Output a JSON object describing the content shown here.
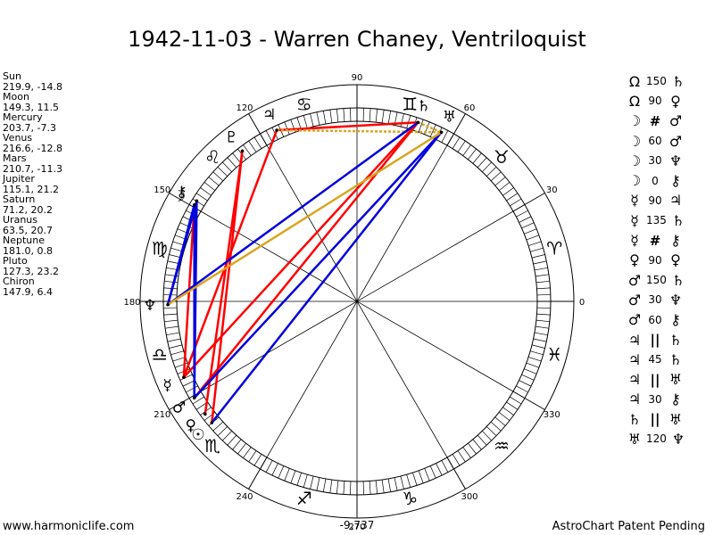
{
  "title": "1942-11-03 - Warren Chaney, Ventriloquist",
  "planets": [
    {
      "name": "Sun",
      "longitude": 219.9,
      "latitude": -14.8,
      "value_text": "219.9, -14.8",
      "glyph": "☉",
      "glyph_label": "Ω"
    },
    {
      "name": "Moon",
      "longitude": 149.3,
      "latitude": 11.5,
      "value_text": "149.3, 11.5",
      "glyph": "☽"
    },
    {
      "name": "Mercury",
      "longitude": 203.7,
      "latitude": -7.3,
      "value_text": "203.7, -7.3",
      "glyph": "☿"
    },
    {
      "name": "Venus",
      "longitude": 216.6,
      "latitude": -12.8,
      "value_text": "216.6, -12.8",
      "glyph": "♀"
    },
    {
      "name": "Mars",
      "longitude": 210.7,
      "latitude": -11.3,
      "value_text": "210.7, -11.3",
      "glyph": "♂"
    },
    {
      "name": "Jupiter",
      "longitude": 115.1,
      "latitude": 21.2,
      "value_text": "115.1, 21.2",
      "glyph": "♃"
    },
    {
      "name": "Saturn",
      "longitude": 71.2,
      "latitude": 20.2,
      "value_text": "71.2, 20.2",
      "glyph": "♄"
    },
    {
      "name": "Uranus",
      "longitude": 63.5,
      "latitude": 20.7,
      "value_text": "63.5, 20.7",
      "glyph": "♅"
    },
    {
      "name": "Neptune",
      "longitude": 181.0,
      "latitude": 0.8,
      "value_text": "181.0, 0.8",
      "glyph": "♆"
    },
    {
      "name": "Pluto",
      "longitude": 127.3,
      "latitude": 23.2,
      "value_text": "127.3, 23.2",
      "glyph": "♇"
    },
    {
      "name": "Chiron",
      "longitude": 147.9,
      "latitude": 6.4,
      "value_text": "147.9, 6.4",
      "glyph": "⚷"
    }
  ],
  "aspects": [
    {
      "p1": "Ω",
      "angle": "150",
      "p2": "♄"
    },
    {
      "p1": "Ω",
      "angle": "90",
      "p2": "♀"
    },
    {
      "p1": "☽",
      "angle": "#",
      "p2": "♂"
    },
    {
      "p1": "☽",
      "angle": "60",
      "p2": "♂"
    },
    {
      "p1": "☽",
      "angle": "30",
      "p2": "♆"
    },
    {
      "p1": "☽",
      "angle": "0",
      "p2": "⚷"
    },
    {
      "p1": "☿",
      "angle": "90",
      "p2": "♃"
    },
    {
      "p1": "☿",
      "angle": "135",
      "p2": "♄"
    },
    {
      "p1": "☿",
      "angle": "#",
      "p2": "⚷"
    },
    {
      "p1": "♀",
      "angle": "90",
      "p2": "♀"
    },
    {
      "p1": "♂",
      "angle": "150",
      "p2": "♄"
    },
    {
      "p1": "♂",
      "angle": "30",
      "p2": "♆"
    },
    {
      "p1": "♂",
      "angle": "60",
      "p2": "⚷"
    },
    {
      "p1": "♃",
      "angle": "||",
      "p2": "♄"
    },
    {
      "p1": "♃",
      "angle": "45",
      "p2": "♄"
    },
    {
      "p1": "♃",
      "angle": "||",
      "p2": "♅"
    },
    {
      "p1": "♃",
      "angle": "30",
      "p2": "⚷"
    },
    {
      "p1": "♄",
      "angle": "||",
      "p2": "♅"
    },
    {
      "p1": "♅",
      "angle": "120",
      "p2": "♆"
    }
  ],
  "wheel_degree_labels": [
    "0",
    "30",
    "60",
    "90",
    "120",
    "150",
    "180",
    "210",
    "240",
    "270",
    "300",
    "330"
  ],
  "zodiac_signs": [
    "♈",
    "♉",
    "♊",
    "♋",
    "♌",
    "♍",
    "♎",
    "♏",
    "♐",
    "♑",
    "♒",
    "♓"
  ],
  "aspect_colors": {
    "red": "#ff0000",
    "blue": "#0000dd",
    "gold": "#daa520"
  },
  "aspect_lines": [
    {
      "from": "Jupiter",
      "to": "Saturn",
      "color": "red"
    },
    {
      "from": "Jupiter",
      "to": "Uranus",
      "color": "gold",
      "dashed": true
    },
    {
      "from": "Saturn",
      "to": "Uranus",
      "color": "gold",
      "dashed": true
    },
    {
      "from": "Jupiter",
      "to": "Mercury",
      "color": "red"
    },
    {
      "from": "Pluto",
      "to": "Sun",
      "color": "red"
    },
    {
      "from": "Pluto",
      "to": "Venus",
      "color": "red"
    },
    {
      "from": "Saturn",
      "to": "Mars",
      "color": "red"
    },
    {
      "from": "Saturn",
      "to": "Mercury",
      "color": "red"
    },
    {
      "from": "Moon",
      "to": "Mercury",
      "color": "red"
    },
    {
      "from": "Moon",
      "to": "Mars",
      "color": "blue"
    },
    {
      "from": "Chiron",
      "to": "Mars",
      "color": "blue"
    },
    {
      "from": "Chiron",
      "to": "Neptune",
      "color": "blue"
    },
    {
      "from": "Moon",
      "to": "Neptune",
      "color": "blue"
    },
    {
      "from": "Saturn",
      "to": "Neptune",
      "color": "blue"
    },
    {
      "from": "Uranus",
      "to": "Sun",
      "color": "blue"
    },
    {
      "from": "Uranus",
      "to": "Mars",
      "color": "blue"
    },
    {
      "from": "Uranus",
      "to": "Neptune",
      "color": "gold"
    }
  ],
  "footer_left": "www.harmoniclife.com",
  "footer_right": "AstroChart Patent Pending",
  "footer_center": "-9,737"
}
